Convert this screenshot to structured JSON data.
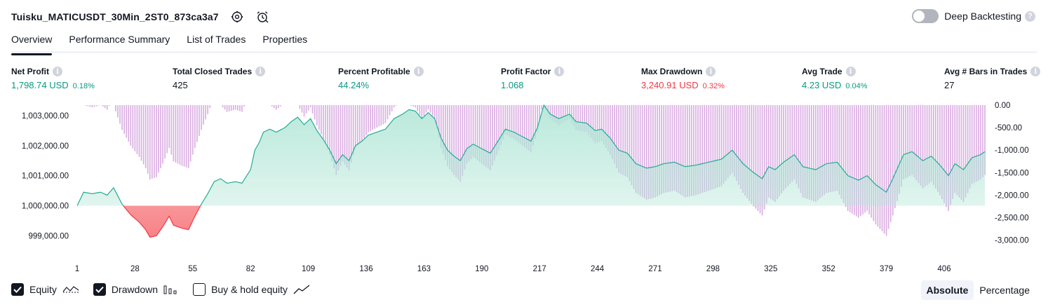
{
  "header": {
    "title": "Tuisku_MATICUSDT_30Min_2ST0_873ca3a7",
    "settings_icon": "gear-icon",
    "alert_icon": "alarm-clock-icon"
  },
  "deep_backtesting": {
    "label": "Deep Backtesting",
    "enabled": false,
    "help": "?"
  },
  "tabs": [
    {
      "label": "Overview",
      "active": true
    },
    {
      "label": "Performance Summary",
      "active": false
    },
    {
      "label": "List of Trades",
      "active": false
    },
    {
      "label": "Properties",
      "active": false
    }
  ],
  "metrics": {
    "net_profit": {
      "label": "Net Profit",
      "value": "1,798.74 USD",
      "pct": "0.18%"
    },
    "total_closed_trades": {
      "label": "Total Closed Trades",
      "value": "425"
    },
    "percent_profitable": {
      "label": "Percent Profitable",
      "value": "44.24%"
    },
    "profit_factor": {
      "label": "Profit Factor",
      "value": "1.068"
    },
    "max_drawdown": {
      "label": "Max Drawdown",
      "value": "3,240.91 USD",
      "pct": "0.32%"
    },
    "avg_trade": {
      "label": "Avg Trade",
      "value": "4.23 USD",
      "pct": "0.04%"
    },
    "avg_bars": {
      "label": "Avg # Bars in Trades",
      "value": "27"
    }
  },
  "info_glyph": "i",
  "colors": {
    "positive": "#089981",
    "negative": "#f23645",
    "equity_line_positive": "#22ab94",
    "equity_fill_positive": "#b2e6d6",
    "equity_fill_negative": "#f77c80",
    "drawdown_bars": "#ce93d8"
  },
  "chart_data": {
    "type": "area",
    "x_ticks": [
      1,
      28,
      55,
      82,
      109,
      136,
      163,
      190,
      217,
      244,
      271,
      298,
      325,
      352,
      379,
      406
    ],
    "x_range": [
      1,
      425
    ],
    "equity_axis": {
      "range": [
        998400,
        1003350
      ],
      "ticks": [
        {
          "value": 1003000,
          "label": "1,003,000.00"
        },
        {
          "value": 1002000,
          "label": "1,002,000.00"
        },
        {
          "value": 1001000,
          "label": "1,001,000.00"
        },
        {
          "value": 1000000,
          "label": "1,000,000.00"
        },
        {
          "value": 999000,
          "label": "999,000.00"
        }
      ]
    },
    "drawdown_axis": {
      "range": [
        -3300,
        0
      ],
      "ticks": [
        {
          "value": 0,
          "label": "0.00"
        },
        {
          "value": -500,
          "label": "-500.00"
        },
        {
          "value": -1000,
          "label": "-1,000.00"
        },
        {
          "value": -1500,
          "label": "-1,500.00"
        },
        {
          "value": -2000,
          "label": "-2,000.00"
        },
        {
          "value": -2500,
          "label": "-2,500.00"
        },
        {
          "value": -3000,
          "label": "-3,000.00"
        }
      ]
    },
    "baseline": 1000000,
    "equity_keypoints": [
      [
        1,
        1000000
      ],
      [
        4,
        1000450
      ],
      [
        8,
        1000400
      ],
      [
        12,
        1000450
      ],
      [
        15,
        1000350
      ],
      [
        18,
        1000600
      ],
      [
        22,
        1000050
      ],
      [
        26,
        999700
      ],
      [
        30,
        999450
      ],
      [
        33,
        999200
      ],
      [
        35,
        998950
      ],
      [
        38,
        999000
      ],
      [
        41,
        999300
      ],
      [
        44,
        999650
      ],
      [
        46,
        999350
      ],
      [
        50,
        999250
      ],
      [
        53,
        999200
      ],
      [
        56,
        999650
      ],
      [
        59,
        1000050
      ],
      [
        62,
        1000400
      ],
      [
        65,
        1000800
      ],
      [
        68,
        1000900
      ],
      [
        71,
        1000750
      ],
      [
        75,
        1000800
      ],
      [
        78,
        1000750
      ],
      [
        82,
        1001200
      ],
      [
        84,
        1001850
      ],
      [
        86,
        1002100
      ],
      [
        88,
        1002450
      ],
      [
        91,
        1002550
      ],
      [
        94,
        1002450
      ],
      [
        98,
        1002600
      ],
      [
        101,
        1002800
      ],
      [
        104,
        1002950
      ],
      [
        107,
        1002700
      ],
      [
        110,
        1002900
      ],
      [
        113,
        1002500
      ],
      [
        116,
        1002200
      ],
      [
        119,
        1001850
      ],
      [
        122,
        1001400
      ],
      [
        125,
        1001700
      ],
      [
        128,
        1001500
      ],
      [
        131,
        1002000
      ],
      [
        134,
        1002150
      ],
      [
        137,
        1002350
      ],
      [
        141,
        1002450
      ],
      [
        145,
        1002550
      ],
      [
        149,
        1002900
      ],
      [
        153,
        1003050
      ],
      [
        156,
        1003200
      ],
      [
        159,
        1003150
      ],
      [
        162,
        1002900
      ],
      [
        165,
        1003100
      ],
      [
        168,
        1002900
      ],
      [
        171,
        1002250
      ],
      [
        174,
        1001850
      ],
      [
        177,
        1001650
      ],
      [
        180,
        1001500
      ],
      [
        183,
        1001900
      ],
      [
        186,
        1002050
      ],
      [
        190,
        1001900
      ],
      [
        194,
        1001750
      ],
      [
        198,
        1002200
      ],
      [
        201,
        1002550
      ],
      [
        205,
        1002450
      ],
      [
        209,
        1002300
      ],
      [
        213,
        1002150
      ],
      [
        216,
        1002600
      ],
      [
        219,
        1003350
      ],
      [
        222,
        1003050
      ],
      [
        226,
        1002900
      ],
      [
        231,
        1003050
      ],
      [
        234,
        1002800
      ],
      [
        239,
        1002750
      ],
      [
        243,
        1002500
      ],
      [
        246,
        1002550
      ],
      [
        250,
        1002250
      ],
      [
        254,
        1001850
      ],
      [
        258,
        1001750
      ],
      [
        262,
        1001400
      ],
      [
        267,
        1001250
      ],
      [
        271,
        1001300
      ],
      [
        275,
        1001400
      ],
      [
        280,
        1001450
      ],
      [
        285,
        1001300
      ],
      [
        290,
        1001350
      ],
      [
        296,
        1001450
      ],
      [
        302,
        1001550
      ],
      [
        307,
        1001850
      ],
      [
        312,
        1001400
      ],
      [
        317,
        1001100
      ],
      [
        321,
        1000900
      ],
      [
        324,
        1001300
      ],
      [
        327,
        1001200
      ],
      [
        331,
        1001450
      ],
      [
        336,
        1001700
      ],
      [
        340,
        1001300
      ],
      [
        346,
        1001200
      ],
      [
        351,
        1001400
      ],
      [
        356,
        1001450
      ],
      [
        361,
        1001000
      ],
      [
        366,
        1000850
      ],
      [
        370,
        1001000
      ],
      [
        374,
        1000700
      ],
      [
        379,
        1000450
      ],
      [
        382,
        1000900
      ],
      [
        387,
        1001700
      ],
      [
        391,
        1001800
      ],
      [
        396,
        1001500
      ],
      [
        400,
        1001650
      ],
      [
        404,
        1001350
      ],
      [
        408,
        1001000
      ],
      [
        411,
        1001400
      ],
      [
        415,
        1001200
      ],
      [
        419,
        1001600
      ],
      [
        423,
        1001700
      ],
      [
        425,
        1001800
      ]
    ]
  },
  "legend": {
    "equity": {
      "label": "Equity",
      "checked": true,
      "icon": "equity-line-icon"
    },
    "drawdown": {
      "label": "Drawdown",
      "checked": true,
      "icon": "drawdown-bars-icon"
    },
    "buy_hold": {
      "label": "Buy & hold equity",
      "checked": false,
      "icon": "buy-hold-line-icon"
    }
  },
  "display_mode": {
    "absolute": {
      "label": "Absolute",
      "active": true
    },
    "percentage": {
      "label": "Percentage",
      "active": false
    }
  }
}
